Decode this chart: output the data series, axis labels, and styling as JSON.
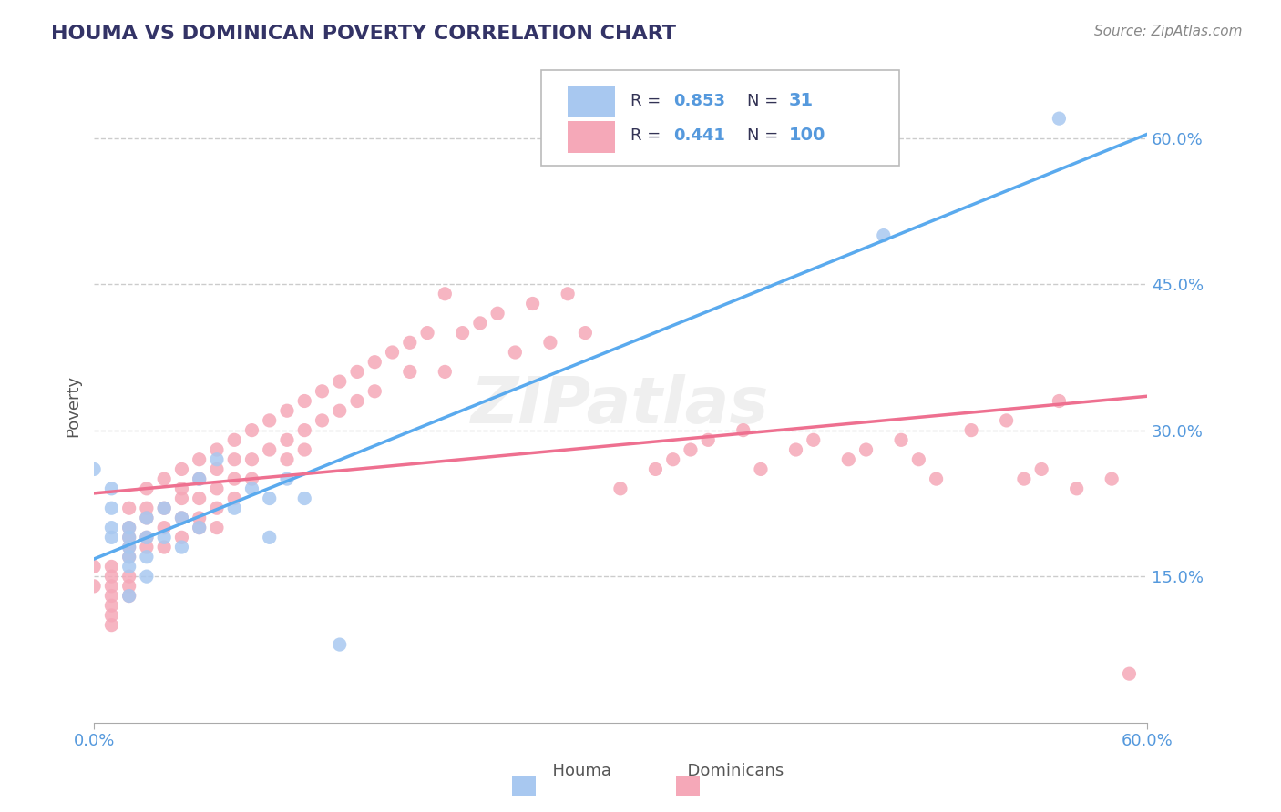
{
  "title": "HOUMA VS DOMINICAN POVERTY CORRELATION CHART",
  "source": "Source: ZipAtlas.com",
  "ylabel_label": "Poverty",
  "y_ticks": [
    0.15,
    0.3,
    0.45,
    0.6
  ],
  "y_tick_labels": [
    "15.0%",
    "30.0%",
    "45.0%",
    "60.0%"
  ],
  "x_lim": [
    0.0,
    0.6
  ],
  "y_lim": [
    0.0,
    0.65
  ],
  "houma_R": 0.853,
  "houma_N": 31,
  "dominican_R": 0.441,
  "dominican_N": 100,
  "houma_color": "#a8c8f0",
  "dominican_color": "#f5a8b8",
  "houma_line_color": "#5aaaee",
  "dominican_line_color": "#ee7090",
  "background_color": "#ffffff",
  "grid_color": "#cccccc",
  "title_color": "#333366",
  "axis_label_color": "#5599dd",
  "legend_text_color": "#333366",
  "legend_value_color": "#5599dd",
  "watermark": "ZIPatlas",
  "houma_x": [
    0.0,
    0.01,
    0.01,
    0.01,
    0.01,
    0.02,
    0.02,
    0.02,
    0.02,
    0.02,
    0.02,
    0.03,
    0.03,
    0.03,
    0.03,
    0.04,
    0.04,
    0.05,
    0.05,
    0.06,
    0.06,
    0.07,
    0.08,
    0.09,
    0.1,
    0.1,
    0.11,
    0.12,
    0.14,
    0.45,
    0.55
  ],
  "houma_y": [
    0.26,
    0.24,
    0.22,
    0.2,
    0.19,
    0.2,
    0.19,
    0.18,
    0.17,
    0.16,
    0.13,
    0.21,
    0.19,
    0.17,
    0.15,
    0.22,
    0.19,
    0.21,
    0.18,
    0.25,
    0.2,
    0.27,
    0.22,
    0.24,
    0.23,
    0.19,
    0.25,
    0.23,
    0.08,
    0.5,
    0.62
  ],
  "dominican_x": [
    0.0,
    0.0,
    0.01,
    0.01,
    0.01,
    0.01,
    0.01,
    0.01,
    0.01,
    0.02,
    0.02,
    0.02,
    0.02,
    0.02,
    0.02,
    0.02,
    0.02,
    0.03,
    0.03,
    0.03,
    0.03,
    0.03,
    0.04,
    0.04,
    0.04,
    0.04,
    0.05,
    0.05,
    0.05,
    0.05,
    0.05,
    0.06,
    0.06,
    0.06,
    0.06,
    0.06,
    0.07,
    0.07,
    0.07,
    0.07,
    0.07,
    0.08,
    0.08,
    0.08,
    0.08,
    0.09,
    0.09,
    0.09,
    0.1,
    0.1,
    0.11,
    0.11,
    0.11,
    0.12,
    0.12,
    0.12,
    0.13,
    0.13,
    0.14,
    0.14,
    0.15,
    0.15,
    0.16,
    0.16,
    0.17,
    0.18,
    0.18,
    0.19,
    0.2,
    0.2,
    0.21,
    0.22,
    0.23,
    0.24,
    0.25,
    0.26,
    0.27,
    0.28,
    0.3,
    0.32,
    0.33,
    0.34,
    0.35,
    0.37,
    0.38,
    0.4,
    0.41,
    0.43,
    0.44,
    0.46,
    0.47,
    0.48,
    0.5,
    0.52,
    0.53,
    0.54,
    0.55,
    0.56,
    0.58,
    0.59
  ],
  "dominican_y": [
    0.16,
    0.14,
    0.16,
    0.15,
    0.14,
    0.13,
    0.12,
    0.11,
    0.1,
    0.22,
    0.2,
    0.19,
    0.18,
    0.17,
    0.15,
    0.14,
    0.13,
    0.24,
    0.22,
    0.21,
    0.19,
    0.18,
    0.25,
    0.22,
    0.2,
    0.18,
    0.26,
    0.24,
    0.23,
    0.21,
    0.19,
    0.27,
    0.25,
    0.23,
    0.21,
    0.2,
    0.28,
    0.26,
    0.24,
    0.22,
    0.2,
    0.29,
    0.27,
    0.25,
    0.23,
    0.3,
    0.27,
    0.25,
    0.31,
    0.28,
    0.32,
    0.29,
    0.27,
    0.33,
    0.3,
    0.28,
    0.34,
    0.31,
    0.35,
    0.32,
    0.36,
    0.33,
    0.37,
    0.34,
    0.38,
    0.39,
    0.36,
    0.4,
    0.36,
    0.44,
    0.4,
    0.41,
    0.42,
    0.38,
    0.43,
    0.39,
    0.44,
    0.4,
    0.24,
    0.26,
    0.27,
    0.28,
    0.29,
    0.3,
    0.26,
    0.28,
    0.29,
    0.27,
    0.28,
    0.29,
    0.27,
    0.25,
    0.3,
    0.31,
    0.25,
    0.26,
    0.33,
    0.24,
    0.25,
    0.05
  ]
}
